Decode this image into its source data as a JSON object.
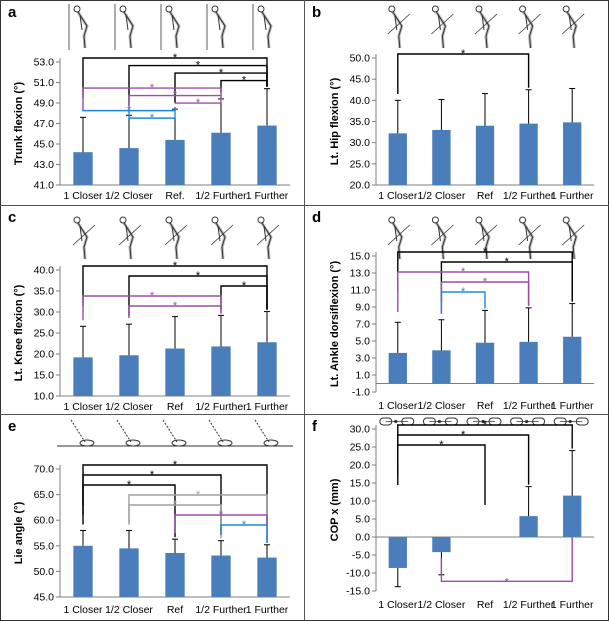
{
  "chart_data": [
    {
      "panel": "a",
      "type": "bar",
      "categories": [
        "1 Closer",
        "1/2 Closer",
        "Ref.",
        "1/2 Further",
        "1 Further"
      ],
      "values": [
        44.2,
        44.6,
        45.4,
        46.1,
        46.8
      ],
      "errors": [
        3.4,
        3.2,
        3.0,
        3.3,
        3.6
      ],
      "ylabel": "Trunk flexion (°)",
      "ylim": [
        41.0,
        53.0
      ],
      "yticks": [
        "41.0",
        "43.0",
        "45.0",
        "47.0",
        "49.0",
        "51.0",
        "53.0"
      ],
      "bar_color": "#4a7ebb",
      "grid": false,
      "icon": "stick-figure-posture-icon",
      "significance": [
        {
          "from": 0,
          "to": 4,
          "color": "#000000",
          "label": "*"
        },
        {
          "from": 1,
          "to": 4,
          "color": "#000000",
          "label": "*"
        },
        {
          "from": 2,
          "to": 4,
          "color": "#000000",
          "label": "*"
        },
        {
          "from": 3,
          "to": 4,
          "color": "#000000",
          "label": "*"
        },
        {
          "from": 0,
          "to": 3,
          "color": "#9b4ea8",
          "label": "*"
        },
        {
          "from": 1,
          "to": 3,
          "color": "#9b4ea8",
          "label": "*"
        },
        {
          "from": 2,
          "to": 3,
          "color": "#9b4ea8",
          "label": "*"
        },
        {
          "from": 0,
          "to": 2,
          "color": "#1e88e5",
          "label": "*"
        },
        {
          "from": 1,
          "to": 2,
          "color": "#1e88e5",
          "label": "*"
        }
      ]
    },
    {
      "panel": "b",
      "type": "bar",
      "categories": [
        "1 Closer",
        "1/2 Closer",
        "Ref",
        "1/2 Further",
        "1 Further"
      ],
      "values": [
        32.2,
        33.0,
        34.0,
        34.5,
        34.8
      ],
      "errors": [
        7.8,
        7.2,
        7.6,
        8.0,
        8.0
      ],
      "ylabel": "Lt. Hip flexion (°)",
      "ylim": [
        20.0,
        50.0
      ],
      "yticks": [
        "20.0",
        "25.0",
        "30.0",
        "35.0",
        "40.0",
        "45.0",
        "50.0"
      ],
      "bar_color": "#4a7ebb",
      "grid": false,
      "icon": "stick-figure-hip-icon",
      "significance": [
        {
          "from": 0,
          "to": 3,
          "color": "#000000",
          "label": "*"
        }
      ]
    },
    {
      "panel": "c",
      "type": "bar",
      "categories": [
        "1 Closer",
        "1/2 Closer",
        "Ref",
        "1/2 Further",
        "1 Further"
      ],
      "values": [
        19.2,
        19.7,
        21.3,
        21.8,
        22.8
      ],
      "errors": [
        7.4,
        7.4,
        7.6,
        7.4,
        7.3
      ],
      "ylabel": "Lt. Knee flexion (°)",
      "ylim": [
        10.0,
        40.0
      ],
      "yticks": [
        "10.0",
        "15.0",
        "20.0",
        "25.0",
        "30.0",
        "35.0",
        "40.0"
      ],
      "bar_color": "#4a7ebb",
      "grid": false,
      "icon": "stick-figure-knee-icon",
      "significance": [
        {
          "from": 0,
          "to": 4,
          "color": "#000000",
          "label": "*"
        },
        {
          "from": 1,
          "to": 4,
          "color": "#000000",
          "label": "*"
        },
        {
          "from": 3,
          "to": 4,
          "color": "#000000",
          "label": "*"
        },
        {
          "from": 0,
          "to": 3,
          "color": "#9b4ea8",
          "label": "*"
        },
        {
          "from": 1,
          "to": 3,
          "color": "#9b4ea8",
          "label": "*"
        }
      ]
    },
    {
      "panel": "d",
      "type": "bar",
      "categories": [
        "1 Closer",
        "1/2 Closer",
        "Ref",
        "1/2 Further",
        "1 Further"
      ],
      "values": [
        3.6,
        3.9,
        4.8,
        4.9,
        5.5
      ],
      "errors": [
        3.6,
        3.6,
        3.8,
        4.0,
        3.9
      ],
      "ylabel": "Lt. Ankle dorsiflexion (°)",
      "ylim": [
        -1.0,
        15.0
      ],
      "yticks": [
        "-1.0",
        "1.0",
        "3.0",
        "5.0",
        "7.0",
        "9.0",
        "11.0",
        "13.0",
        "15.0"
      ],
      "bar_color": "#4a7ebb",
      "grid": false,
      "icon": "stick-figure-ankle-icon",
      "significance": [
        {
          "from": 0,
          "to": 4,
          "color": "#000000",
          "label": "*"
        },
        {
          "from": 1,
          "to": 4,
          "color": "#000000",
          "label": "*"
        },
        {
          "from": 0,
          "to": 3,
          "color": "#9b4ea8",
          "label": "*"
        },
        {
          "from": 1,
          "to": 3,
          "color": "#9b4ea8",
          "label": "*"
        },
        {
          "from": 1,
          "to": 2,
          "color": "#1e88e5",
          "label": "*"
        }
      ]
    },
    {
      "panel": "e",
      "type": "bar",
      "categories": [
        "1 Closer",
        "1/2 Closer",
        "Ref",
        "1/2 Further",
        "1 Further"
      ],
      "values": [
        55.0,
        54.5,
        53.6,
        53.1,
        52.7
      ],
      "errors": [
        3.0,
        3.5,
        2.7,
        2.9,
        2.5
      ],
      "ylabel": "Lie angle (°)",
      "ylim": [
        45.0,
        70.0
      ],
      "yticks": [
        "45.0",
        "50.0",
        "55.0",
        "60.0",
        "65.0",
        "70.0"
      ],
      "bar_color": "#4a7ebb",
      "grid": false,
      "icon": "club-lie-angle-icon",
      "significance": [
        {
          "from": 0,
          "to": 4,
          "color": "#000000",
          "label": "*"
        },
        {
          "from": 0,
          "to": 3,
          "color": "#000000",
          "label": "*"
        },
        {
          "from": 0,
          "to": 2,
          "color": "#000000",
          "label": "*"
        },
        {
          "from": 1,
          "to": 4,
          "color": "#a0a0a0",
          "label": "*"
        },
        {
          "from": 1,
          "to": 3,
          "color": "#a0a0a0",
          "label": "*"
        },
        {
          "from": 2,
          "to": 4,
          "color": "#9b4ea8",
          "label": "*"
        },
        {
          "from": 3,
          "to": 4,
          "color": "#1e88e5",
          "label": "*"
        }
      ]
    },
    {
      "panel": "f",
      "type": "bar",
      "categories": [
        "1 Closer",
        "1/2 Closer",
        "Ref",
        "1/2 Further",
        "1 Further"
      ],
      "values": [
        -8.6,
        -4.2,
        0.0,
        5.8,
        11.5
      ],
      "errors": [
        5.2,
        6.3,
        0.0,
        8.2,
        12.5
      ],
      "ylabel": "COP x (mm)",
      "ylim": [
        -15.0,
        30.0
      ],
      "yticks": [
        "-15.0",
        "-10.0",
        "-5.0",
        "0.0",
        "5.0",
        "10.0",
        "15.0",
        "20.0",
        "25.0",
        "30.0"
      ],
      "bar_color": "#4a7ebb",
      "grid": false,
      "icon": "foot-position-icon",
      "significance": [
        {
          "from": 0,
          "to": 4,
          "color": "#000000",
          "label": "*"
        },
        {
          "from": 0,
          "to": 3,
          "color": "#000000",
          "label": "*"
        },
        {
          "from": 0,
          "to": 2,
          "color": "#000000",
          "label": "*"
        },
        {
          "from": 1,
          "to": 4,
          "color": "#9b4ea8",
          "label": "*",
          "below": true
        }
      ]
    }
  ]
}
